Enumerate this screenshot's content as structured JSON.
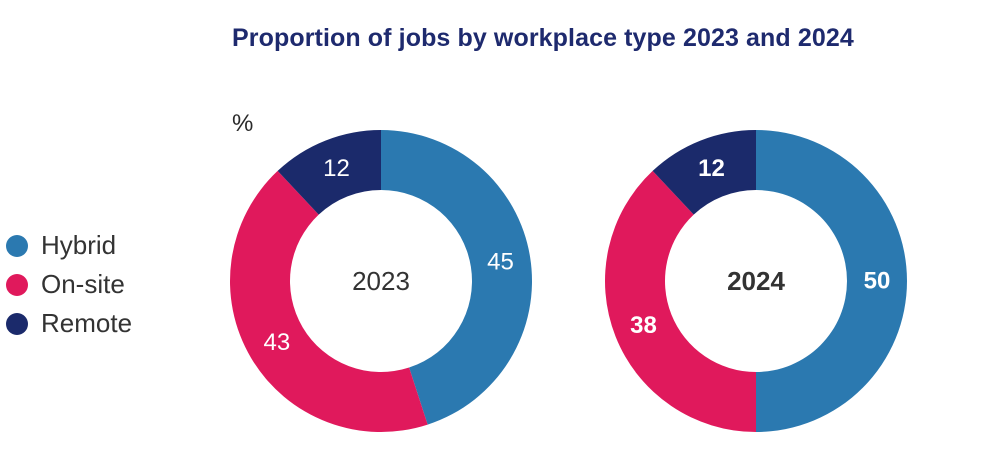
{
  "chart_data": {
    "type": "pie",
    "title": "Proportion of jobs by workplace type 2023 and 2024",
    "unit_label": "%",
    "categories": [
      "Hybrid",
      "On-site",
      "Remote"
    ],
    "colors": [
      "#2b79b0",
      "#e0195c",
      "#1b2a6b"
    ],
    "series": [
      {
        "name": "2023",
        "values": [
          45,
          43,
          12
        ],
        "center_label": "2023",
        "bold": false
      },
      {
        "name": "2024",
        "values": [
          50,
          38,
          12
        ],
        "center_label": "2024",
        "bold": true
      }
    ],
    "legend": [
      {
        "label": "Hybrid",
        "color": "#2b79b0"
      },
      {
        "label": "On-site",
        "color": "#e0195c"
      },
      {
        "label": "Remote",
        "color": "#1b2a6b"
      }
    ],
    "legend_position": "left"
  }
}
